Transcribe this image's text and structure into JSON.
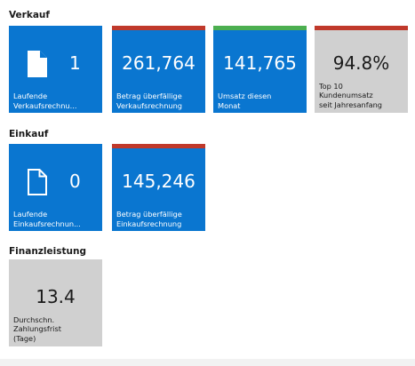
{
  "groups": {
    "verkauf": "Verkauf",
    "einkauf": "Einkauf",
    "finanz": "Finanzleistung"
  },
  "tiles": {
    "v1": {
      "value": "1",
      "caption": "Laufende\nVerkaufsrechnu...",
      "icon": "document-icon-filled"
    },
    "v2": {
      "value": "261,764",
      "caption": "Betrag überfällige\nVerkaufsrechnung",
      "status_color": "#c0392b"
    },
    "v3": {
      "value": "141,765",
      "caption": "Umsatz diesen\nMonat",
      "status_color": "#4caf50"
    },
    "v4": {
      "value": "94.8%",
      "caption": "Top 10\nKundenumsatz\nseit Jahresanfang",
      "status_color": "#c0392b"
    },
    "e1": {
      "value": "0",
      "caption": "Laufende\nEinkaufsrechnun...",
      "icon": "document-icon-outline"
    },
    "e2": {
      "value": "145,246",
      "caption": "Betrag überfällige\nEinkaufsrechnung",
      "status_color": "#c0392b"
    },
    "f1": {
      "value": "13.4",
      "caption": "Durchschn.\nZahlungsfrist\n(Tage)"
    }
  }
}
